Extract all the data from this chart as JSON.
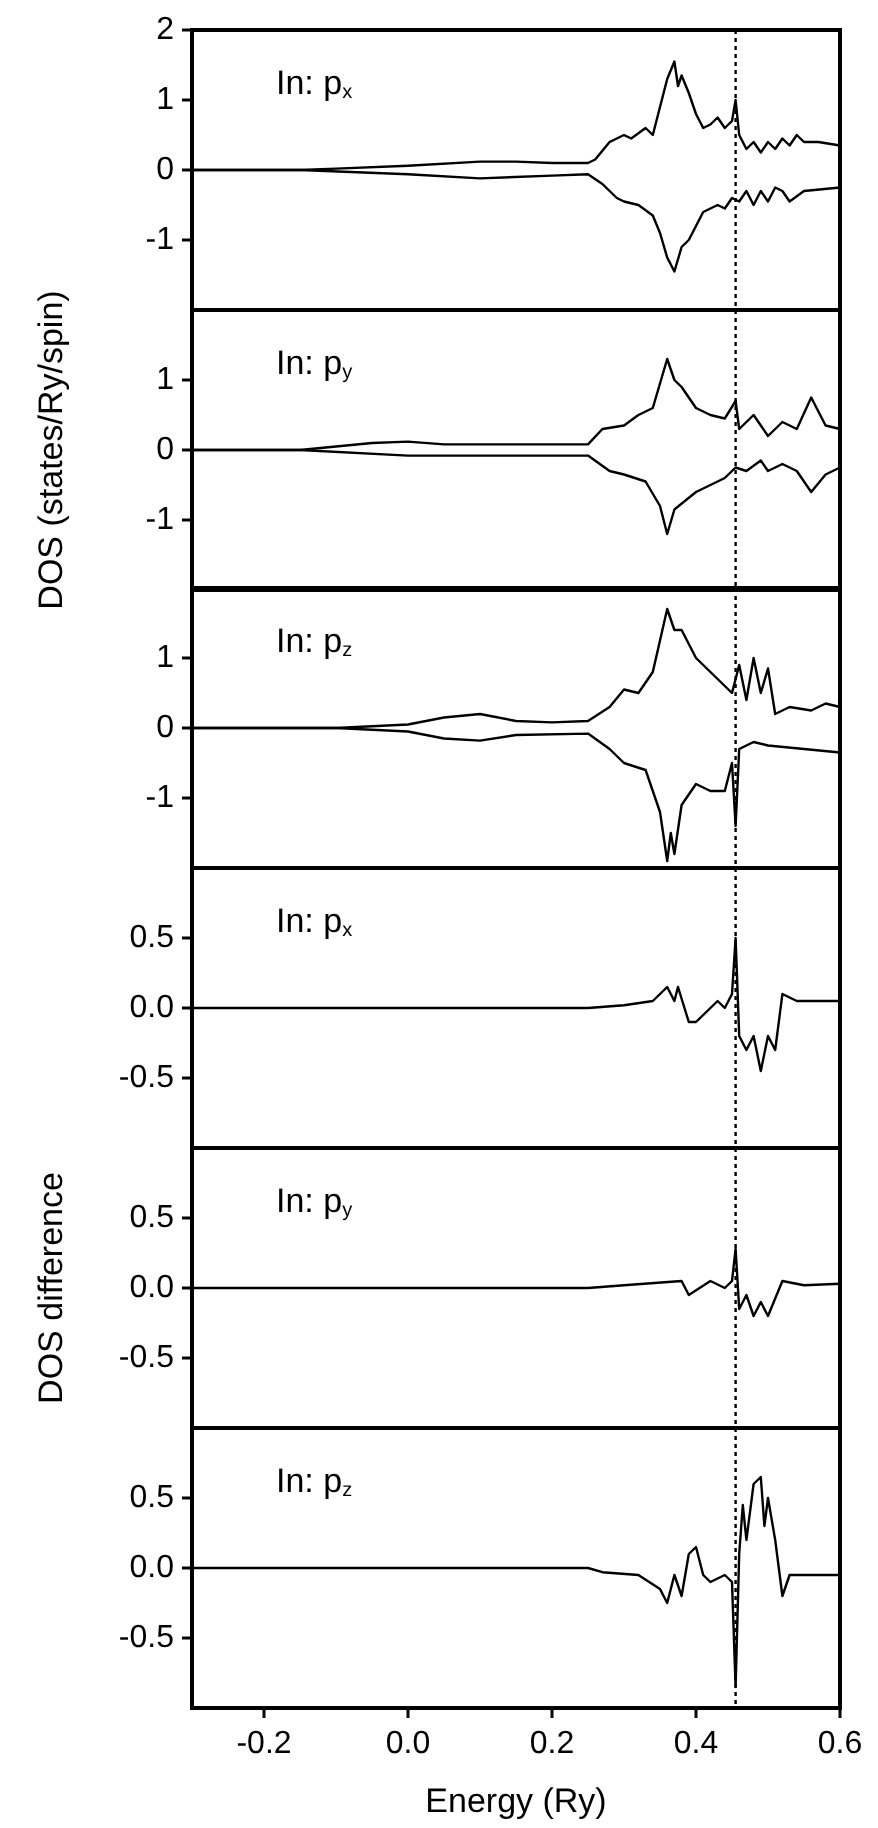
{
  "chart_data": [
    {
      "type": "line",
      "annotations": [
        "In: p$_{x}$"
      ],
      "xlim": [
        -0.3,
        0.6
      ],
      "ylim": [
        -2,
        2
      ],
      "yticks": [
        -1,
        0,
        1,
        2
      ],
      "tick_labels": "y",
      "marker": "none",
      "line_style": "solid",
      "ref_lines": [
        {
          "axis": "x",
          "value": 0.455,
          "line_style": "dotted",
          "color": "#000000"
        }
      ],
      "series": [
        {
          "color": "#000000",
          "x": [
            -0.3,
            -0.15,
            -0.1,
            0.0,
            0.1,
            0.15,
            0.2,
            0.25,
            0.26,
            0.28,
            0.3,
            0.31,
            0.33,
            0.34,
            0.35,
            0.36,
            0.37,
            0.375,
            0.38,
            0.39,
            0.4,
            0.41,
            0.42,
            0.43,
            0.44,
            0.45,
            0.455,
            0.46,
            0.47,
            0.48,
            0.49,
            0.5,
            0.51,
            0.52,
            0.53,
            0.54,
            0.55,
            0.57,
            0.6
          ],
          "values": [
            0,
            0,
            0.02,
            0.06,
            0.12,
            0.12,
            0.1,
            0.1,
            0.15,
            0.4,
            0.5,
            0.45,
            0.6,
            0.5,
            0.9,
            1.3,
            1.55,
            1.2,
            1.35,
            1.1,
            0.8,
            0.6,
            0.65,
            0.75,
            0.6,
            0.7,
            1.0,
            0.5,
            0.3,
            0.4,
            0.25,
            0.4,
            0.3,
            0.45,
            0.35,
            0.5,
            0.4,
            0.4,
            0.35
          ]
        },
        {
          "color": "#000000",
          "x": [
            -0.3,
            -0.15,
            0.0,
            0.1,
            0.2,
            0.25,
            0.27,
            0.29,
            0.3,
            0.32,
            0.34,
            0.35,
            0.36,
            0.37,
            0.38,
            0.39,
            0.4,
            0.41,
            0.42,
            0.43,
            0.44,
            0.45,
            0.46,
            0.47,
            0.48,
            0.49,
            0.5,
            0.51,
            0.52,
            0.53,
            0.55,
            0.6
          ],
          "values": [
            0,
            0,
            -0.06,
            -0.12,
            -0.08,
            -0.06,
            -0.2,
            -0.4,
            -0.45,
            -0.5,
            -0.65,
            -0.9,
            -1.25,
            -1.45,
            -1.1,
            -1.0,
            -0.8,
            -0.6,
            -0.55,
            -0.5,
            -0.55,
            -0.4,
            -0.45,
            -0.3,
            -0.5,
            -0.3,
            -0.45,
            -0.25,
            -0.3,
            -0.45,
            -0.3,
            -0.25
          ]
        }
      ]
    },
    {
      "type": "line",
      "ylabel": "DOS (states/Ry/spin)",
      "annotations": [
        "In: p$_{y}$"
      ],
      "xlim": [
        -0.3,
        0.6
      ],
      "ylim": [
        -2,
        2
      ],
      "yticks": [
        -1,
        0,
        1
      ],
      "tick_labels": "y",
      "marker": "none",
      "line_style": "solid",
      "ref_lines": [
        {
          "axis": "x",
          "value": 0.455,
          "line_style": "dotted",
          "color": "#000000"
        }
      ],
      "series": [
        {
          "color": "#000000",
          "x": [
            -0.3,
            -0.15,
            -0.05,
            0.0,
            0.05,
            0.1,
            0.2,
            0.25,
            0.27,
            0.3,
            0.32,
            0.34,
            0.36,
            0.37,
            0.38,
            0.4,
            0.42,
            0.44,
            0.455,
            0.46,
            0.48,
            0.5,
            0.52,
            0.54,
            0.56,
            0.58,
            0.6
          ],
          "values": [
            0,
            0,
            0.1,
            0.12,
            0.08,
            0.08,
            0.08,
            0.08,
            0.3,
            0.35,
            0.5,
            0.6,
            1.3,
            1.0,
            0.9,
            0.6,
            0.5,
            0.45,
            0.7,
            0.3,
            0.5,
            0.2,
            0.4,
            0.3,
            0.75,
            0.35,
            0.3
          ]
        },
        {
          "color": "#000000",
          "x": [
            -0.3,
            -0.15,
            0.0,
            0.25,
            0.28,
            0.3,
            0.33,
            0.35,
            0.36,
            0.37,
            0.4,
            0.42,
            0.44,
            0.455,
            0.47,
            0.49,
            0.5,
            0.52,
            0.54,
            0.56,
            0.58,
            0.6
          ],
          "values": [
            0,
            0,
            -0.08,
            -0.08,
            -0.3,
            -0.35,
            -0.45,
            -0.8,
            -1.2,
            -0.85,
            -0.6,
            -0.5,
            -0.4,
            -0.25,
            -0.3,
            -0.15,
            -0.3,
            -0.2,
            -0.3,
            -0.6,
            -0.35,
            -0.25
          ]
        }
      ]
    },
    {
      "type": "line",
      "annotations": [
        "In: p$_{z}$"
      ],
      "xlim": [
        -0.3,
        0.6
      ],
      "ylim": [
        -2,
        2
      ],
      "yticks": [
        -1,
        0,
        1
      ],
      "tick_labels": "y",
      "marker": "none",
      "line_style": "solid",
      "ref_lines": [
        {
          "axis": "x",
          "value": 0.455,
          "line_style": "dotted",
          "color": "#000000"
        }
      ],
      "series": [
        {
          "color": "#000000",
          "x": [
            -0.3,
            -0.1,
            0.0,
            0.05,
            0.1,
            0.15,
            0.2,
            0.25,
            0.28,
            0.3,
            0.32,
            0.34,
            0.36,
            0.37,
            0.38,
            0.4,
            0.42,
            0.44,
            0.45,
            0.46,
            0.47,
            0.48,
            0.49,
            0.5,
            0.51,
            0.53,
            0.56,
            0.58,
            0.6
          ],
          "values": [
            0,
            0,
            0.05,
            0.15,
            0.2,
            0.1,
            0.08,
            0.1,
            0.3,
            0.55,
            0.5,
            0.8,
            1.7,
            1.4,
            1.4,
            1.0,
            0.8,
            0.6,
            0.5,
            0.9,
            0.4,
            1.0,
            0.5,
            0.85,
            0.2,
            0.3,
            0.25,
            0.35,
            0.3
          ]
        },
        {
          "color": "#000000",
          "x": [
            -0.3,
            -0.1,
            0.0,
            0.05,
            0.1,
            0.15,
            0.25,
            0.28,
            0.3,
            0.33,
            0.35,
            0.36,
            0.365,
            0.37,
            0.38,
            0.4,
            0.42,
            0.44,
            0.45,
            0.455,
            0.46,
            0.48,
            0.5,
            0.55,
            0.6
          ],
          "values": [
            0,
            0,
            -0.05,
            -0.15,
            -0.18,
            -0.1,
            -0.08,
            -0.3,
            -0.5,
            -0.6,
            -1.2,
            -1.9,
            -1.5,
            -1.8,
            -1.1,
            -0.8,
            -0.9,
            -0.9,
            -0.5,
            -1.4,
            -0.3,
            -0.2,
            -0.25,
            -0.3,
            -0.35
          ]
        }
      ]
    },
    {
      "type": "line",
      "annotations": [
        "In: p$_{x}$"
      ],
      "xlim": [
        -0.3,
        0.6
      ],
      "ylim": [
        -1,
        1
      ],
      "yticks": [
        {
          "value": -0.5,
          "label": "-0.5"
        },
        {
          "value": 0,
          "label": "0.0"
        },
        {
          "value": 0.5,
          "label": "0.5"
        }
      ],
      "tick_labels": "y",
      "marker": "none",
      "line_style": "solid",
      "ref_lines": [
        {
          "axis": "x",
          "value": 0.455,
          "line_style": "dotted",
          "color": "#000000"
        }
      ],
      "series": [
        {
          "color": "#000000",
          "x": [
            -0.3,
            0.25,
            0.3,
            0.34,
            0.36,
            0.37,
            0.375,
            0.39,
            0.4,
            0.42,
            0.43,
            0.44,
            0.45,
            0.455,
            0.46,
            0.47,
            0.48,
            0.49,
            0.5,
            0.51,
            0.52,
            0.54,
            0.6
          ],
          "values": [
            0,
            0,
            0.02,
            0.05,
            0.15,
            0.05,
            0.15,
            -0.1,
            -0.1,
            0.0,
            0.05,
            0.0,
            0.1,
            0.5,
            -0.2,
            -0.3,
            -0.2,
            -0.45,
            -0.2,
            -0.3,
            0.1,
            0.05,
            0.05
          ]
        }
      ]
    },
    {
      "type": "line",
      "ylabel": "DOS difference",
      "annotations": [
        "In: p$_{y}$"
      ],
      "xlim": [
        -0.3,
        0.6
      ],
      "ylim": [
        -1,
        1
      ],
      "yticks": [
        {
          "value": -0.5,
          "label": "-0.5"
        },
        {
          "value": 0,
          "label": "0.0"
        },
        {
          "value": 0.5,
          "label": "0.5"
        }
      ],
      "tick_labels": "y",
      "marker": "none",
      "line_style": "solid",
      "ref_lines": [
        {
          "axis": "x",
          "value": 0.455,
          "line_style": "dotted",
          "color": "#000000"
        }
      ],
      "series": [
        {
          "color": "#000000",
          "x": [
            -0.3,
            0.25,
            0.3,
            0.38,
            0.39,
            0.42,
            0.44,
            0.45,
            0.455,
            0.46,
            0.47,
            0.48,
            0.49,
            0.5,
            0.52,
            0.55,
            0.6
          ],
          "values": [
            0,
            0,
            0.02,
            0.05,
            -0.05,
            0.05,
            0.0,
            0.05,
            0.28,
            -0.15,
            -0.05,
            -0.2,
            -0.1,
            -0.2,
            0.05,
            0.02,
            0.03
          ]
        }
      ]
    },
    {
      "type": "line",
      "xlabel": "Energy (Ry)",
      "annotations": [
        "In: p$_{z}$"
      ],
      "xlim": [
        -0.3,
        0.6
      ],
      "xticks": [
        -0.2,
        {
          "value": 0,
          "label": "0.0"
        },
        0.2,
        0.4,
        0.6
      ],
      "ylim": [
        -1,
        1
      ],
      "yticks": [
        {
          "value": -0.5,
          "label": "-0.5"
        },
        {
          "value": 0,
          "label": "0.0"
        },
        {
          "value": 0.5,
          "label": "0.5"
        }
      ],
      "marker": "none",
      "line_style": "solid",
      "ref_lines": [
        {
          "axis": "x",
          "value": 0.455,
          "line_style": "dotted",
          "color": "#000000"
        }
      ],
      "series": [
        {
          "color": "#000000",
          "x": [
            -0.3,
            0.25,
            0.27,
            0.32,
            0.35,
            0.36,
            0.37,
            0.38,
            0.39,
            0.4,
            0.41,
            0.42,
            0.44,
            0.45,
            0.455,
            0.46,
            0.465,
            0.47,
            0.48,
            0.49,
            0.495,
            0.5,
            0.51,
            0.52,
            0.53,
            0.6
          ],
          "values": [
            0,
            0,
            -0.03,
            -0.05,
            -0.15,
            -0.25,
            -0.05,
            -0.2,
            0.1,
            0.15,
            -0.05,
            -0.1,
            -0.05,
            -0.1,
            -0.85,
            0.1,
            0.45,
            0.2,
            0.6,
            0.65,
            0.3,
            0.5,
            0.2,
            -0.2,
            -0.05,
            -0.05
          ]
        }
      ]
    }
  ]
}
